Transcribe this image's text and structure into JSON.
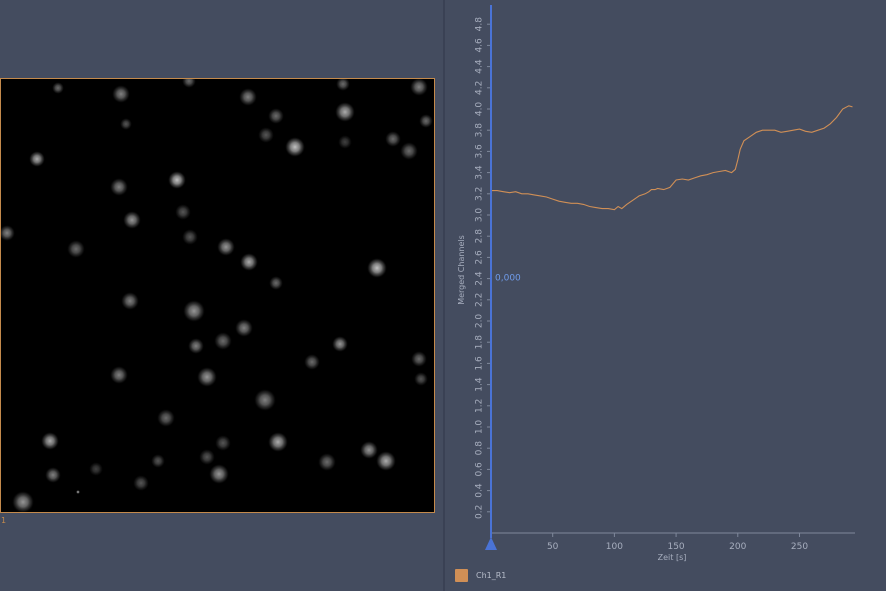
{
  "image_view": {
    "frame_index": "1",
    "frame_border_color": "#c48a4c"
  },
  "chart_data": {
    "type": "line",
    "title": "",
    "xlabel": "Zeit [s]",
    "ylabel": "Merged Channels",
    "xlim": [
      0,
      295
    ],
    "ylim": [
      0,
      5
    ],
    "x_ticks": [
      50,
      100,
      150,
      200,
      250
    ],
    "y_ticks": [
      0.2,
      0.4,
      0.6,
      0.8,
      1.0,
      1.2,
      1.4,
      1.6,
      1.8,
      2.0,
      2.2,
      2.4,
      2.6,
      2.8,
      3.0,
      3.2,
      3.4,
      3.6,
      3.8,
      4.0,
      4.2,
      4.4,
      4.6,
      4.8
    ],
    "cursor": {
      "x": 0,
      "label": "0,000",
      "color": "#4a73d6"
    },
    "grid": false,
    "legend": "bottom-left",
    "series": [
      {
        "name": "Ch1_R1",
        "color": "#d08f56",
        "x": [
          0,
          5,
          10,
          15,
          20,
          25,
          30,
          35,
          40,
          45,
          50,
          55,
          60,
          65,
          70,
          75,
          80,
          85,
          90,
          95,
          100,
          103,
          106,
          110,
          115,
          120,
          125,
          128,
          130,
          133,
          135,
          140,
          145,
          150,
          155,
          160,
          165,
          170,
          175,
          180,
          185,
          190,
          195,
          198,
          200,
          202,
          205,
          210,
          215,
          220,
          225,
          230,
          235,
          240,
          245,
          250,
          255,
          260,
          265,
          270,
          275,
          280,
          285,
          290,
          293
        ],
        "y": [
          3.23,
          3.23,
          3.22,
          3.21,
          3.22,
          3.2,
          3.2,
          3.19,
          3.18,
          3.17,
          3.15,
          3.13,
          3.12,
          3.11,
          3.11,
          3.1,
          3.08,
          3.07,
          3.06,
          3.06,
          3.05,
          3.08,
          3.06,
          3.1,
          3.14,
          3.18,
          3.2,
          3.22,
          3.24,
          3.24,
          3.25,
          3.24,
          3.26,
          3.33,
          3.34,
          3.33,
          3.35,
          3.37,
          3.38,
          3.4,
          3.41,
          3.42,
          3.4,
          3.43,
          3.52,
          3.62,
          3.7,
          3.74,
          3.78,
          3.8,
          3.8,
          3.8,
          3.78,
          3.79,
          3.8,
          3.81,
          3.79,
          3.78,
          3.8,
          3.82,
          3.86,
          3.92,
          4.0,
          4.03,
          4.02
        ]
      }
    ]
  }
}
